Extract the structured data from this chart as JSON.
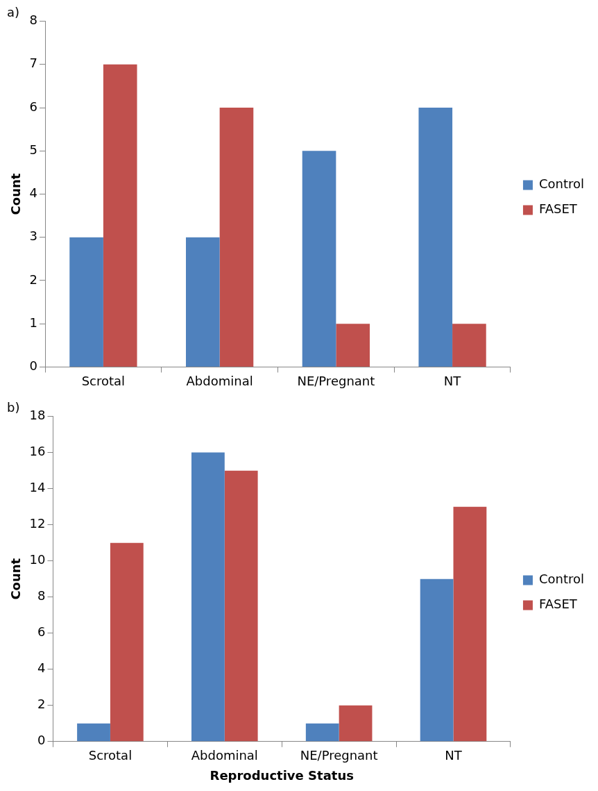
{
  "chart_data": [
    {
      "type": "bar",
      "title": "a)",
      "ylabel": "Count",
      "categories": [
        "Scrotal",
        "Abdominal",
        "NE/Pregnant",
        "NT"
      ],
      "series": [
        {
          "name": "Control",
          "color": "#4f81bd",
          "values": [
            3,
            3,
            5,
            6
          ]
        },
        {
          "name": "FASET",
          "color": "#c0504d",
          "values": [
            7,
            6,
            1,
            1
          ]
        }
      ],
      "ylim": [
        0,
        8
      ],
      "yticks": [
        0,
        1,
        2,
        3,
        4,
        5,
        6,
        7,
        8
      ],
      "grid": false,
      "legend": "right"
    },
    {
      "type": "bar",
      "title": "b)",
      "ylabel": "Count",
      "xlabel": "Reproductive Status",
      "categories": [
        "Scrotal",
        "Abdominal",
        "NE/Pregnant",
        "NT"
      ],
      "series": [
        {
          "name": "Control",
          "color": "#4f81bd",
          "values": [
            1,
            16,
            1,
            9
          ]
        },
        {
          "name": "FASET",
          "color": "#c0504d",
          "values": [
            11,
            15,
            2,
            13
          ]
        }
      ],
      "ylim": [
        0,
        18
      ],
      "yticks": [
        0,
        2,
        4,
        6,
        8,
        10,
        12,
        14,
        16,
        18
      ],
      "grid": false,
      "legend": "right"
    }
  ]
}
